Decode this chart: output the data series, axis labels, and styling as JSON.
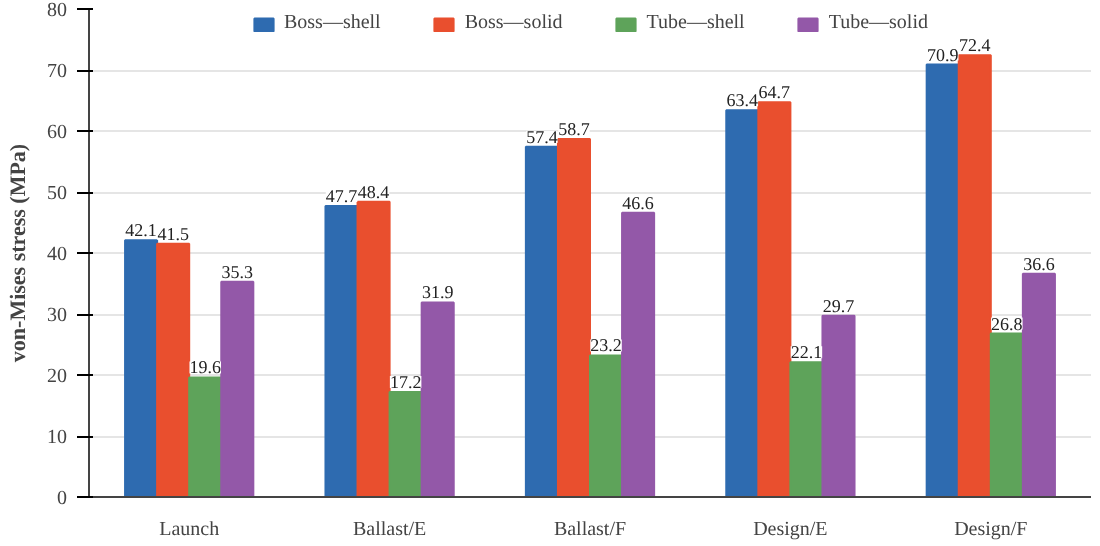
{
  "chart_data": {
    "type": "bar",
    "ylabel": "von-Mises stress (MPa)",
    "categories": [
      "Launch",
      "Ballast/E",
      "Ballast/F",
      "Design/E",
      "Design/F"
    ],
    "series": [
      {
        "name": "Boss—shell",
        "color": "#2e6bb0",
        "values": [
          42.1,
          47.7,
          57.4,
          63.4,
          70.9
        ]
      },
      {
        "name": "Boss—solid",
        "color": "#e94f2e",
        "values": [
          41.5,
          48.4,
          58.7,
          64.7,
          72.4
        ]
      },
      {
        "name": "Tube—shell",
        "color": "#5ea35a",
        "values": [
          19.6,
          17.2,
          23.2,
          22.1,
          26.8
        ]
      },
      {
        "name": "Tube—solid",
        "color": "#9358a8",
        "values": [
          35.3,
          31.9,
          46.6,
          29.7,
          36.6
        ]
      }
    ],
    "ylim": [
      0,
      80
    ],
    "yticks": [
      0,
      10,
      20,
      30,
      40,
      50,
      60,
      70,
      80
    ],
    "grid": "y",
    "legend": "top",
    "data_labels": true
  }
}
